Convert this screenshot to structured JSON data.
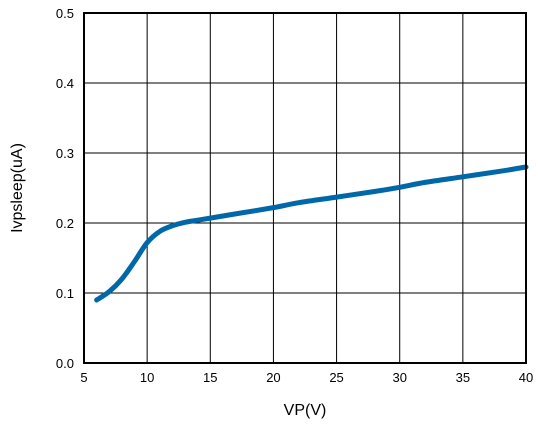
{
  "chart_data": {
    "type": "line",
    "title": "",
    "xlabel": "VP(V)",
    "ylabel": "Ivpsleep(uA)",
    "xlim": [
      5,
      40
    ],
    "ylim": [
      0.0,
      0.5
    ],
    "xticks": [
      5,
      10,
      15,
      20,
      25,
      30,
      35,
      40
    ],
    "xtick_labels": [
      "5",
      "10",
      "15",
      "20",
      "25",
      "30",
      "35",
      "40"
    ],
    "yticks": [
      0.0,
      0.1,
      0.2,
      0.3,
      0.4,
      0.5
    ],
    "ytick_labels": [
      "0.0",
      "0.1",
      "0.2",
      "0.3",
      "0.4",
      "0.5"
    ],
    "grid": true,
    "legend": "none",
    "line_color": "#0068A8",
    "series": [
      {
        "x": [
          6,
          7,
          8,
          9,
          10,
          11,
          12,
          13,
          14,
          15,
          17,
          20,
          22,
          25,
          28,
          30,
          32,
          35,
          38,
          40
        ],
        "values": [
          0.09,
          0.102,
          0.12,
          0.145,
          0.172,
          0.188,
          0.196,
          0.201,
          0.204,
          0.207,
          0.213,
          0.222,
          0.229,
          0.237,
          0.245,
          0.251,
          0.258,
          0.266,
          0.274,
          0.28
        ]
      }
    ]
  }
}
